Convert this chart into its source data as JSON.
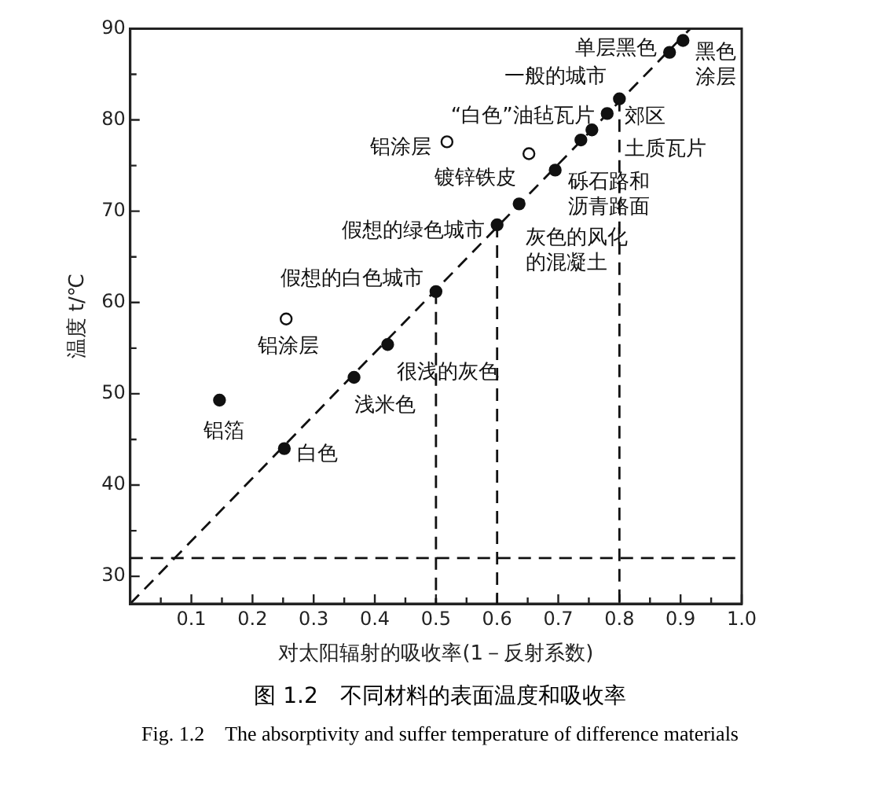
{
  "chart_data": {
    "type": "scatter",
    "xlabel": "对太阳辐射的吸收率(1－反射系数)",
    "ylabel": "温度 t/℃",
    "xlim": [
      0,
      1
    ],
    "ylim": [
      27,
      90
    ],
    "xticks": [
      {
        "value": 0.05,
        "label": null
      },
      0.1,
      {
        "value": 0.15,
        "label": null
      },
      0.2,
      {
        "value": 0.25,
        "label": null
      },
      0.3,
      {
        "value": 0.35,
        "label": null
      },
      0.4,
      {
        "value": 0.45,
        "label": null
      },
      0.5,
      {
        "value": 0.55,
        "label": null
      },
      0.6,
      {
        "value": 0.65,
        "label": null
      },
      0.7,
      {
        "value": 0.75,
        "label": null
      },
      0.8,
      {
        "value": 0.85,
        "label": null
      },
      0.9,
      {
        "value": 0.95,
        "label": null
      },
      {
        "value": 1,
        "label": "1.0"
      }
    ],
    "yticks": [
      30,
      {
        "value": 35,
        "label": null
      },
      40,
      {
        "value": 45,
        "label": null
      },
      50,
      {
        "value": 55,
        "label": null
      },
      60,
      {
        "value": 65,
        "label": null
      },
      70,
      {
        "value": 75,
        "label": null
      },
      80,
      {
        "value": 85,
        "label": null
      },
      90
    ],
    "grid": false,
    "marker": "circle",
    "line_style": "dashed",
    "series": [
      {
        "type": "scatter",
        "color": "#111111",
        "x": [
          0.252,
          0.146,
          0.366,
          0.421,
          0.5,
          0.6,
          0.636,
          0.695,
          0.737,
          0.755,
          0.78,
          0.8,
          0.882,
          0.904
        ],
        "values": [
          44.0,
          49.3,
          51.8,
          55.4,
          61.2,
          68.5,
          70.8,
          74.5,
          77.8,
          78.9,
          80.7,
          82.3,
          87.4,
          88.7
        ]
      },
      {
        "type": "scatter",
        "color": "#ffffff",
        "x": [
          0.255,
          0.652,
          0.518
        ],
        "values": [
          58.2,
          76.3,
          77.6
        ]
      },
      {
        "type": "line",
        "marker": "none",
        "color": "#111111",
        "x": [
          0,
          0.916
        ],
        "values": [
          27,
          90
        ]
      }
    ],
    "ref_lines": [
      {
        "axis": "y",
        "value": 32,
        "line_style": "dashed",
        "color": "#111111"
      },
      {
        "axis": "x",
        "value": 0.5,
        "line_style": "dashed",
        "color": "#111111"
      },
      {
        "axis": "x",
        "value": 0.6,
        "line_style": "dashed",
        "color": "#111111"
      },
      {
        "axis": "x",
        "value": 0.8,
        "line_style": "dashed",
        "color": "#111111"
      }
    ],
    "annotations": [
      {
        "text": "白色",
        "x": 0.252,
        "y": 44.0
      },
      {
        "text": "铝箔",
        "x": 0.146,
        "y": 49.3
      },
      {
        "text": "浅米色",
        "x": 0.366,
        "y": 51.8
      },
      {
        "text": "很浅的灰色",
        "x": 0.421,
        "y": 55.4
      },
      {
        "text": "铝涂层",
        "x": 0.255,
        "y": 58.2
      },
      {
        "text": "假想的白色城市",
        "x": 0.5,
        "y": 61.2
      },
      {
        "text": "假想的绿色城市",
        "x": 0.6,
        "y": 68.5
      },
      {
        "text": "灰色的风化的混凝土",
        "x": 0.636,
        "y": 70.8
      },
      {
        "text": "砾石路和沥青路面",
        "x": 0.695,
        "y": 74.5
      },
      {
        "text": "镀锌铁皮",
        "x": 0.652,
        "y": 76.3
      },
      {
        "text": "铝涂层",
        "x": 0.518,
        "y": 77.6
      },
      {
        "text": "土质瓦片",
        "x": 0.737,
        "y": 77.8
      },
      {
        "text": "郊区",
        "x": 0.755,
        "y": 78.9
      },
      {
        "text": "“白色”油毡瓦片",
        "x": 0.78,
        "y": 80.7
      },
      {
        "text": "一般的城市",
        "x": 0.8,
        "y": 82.3
      },
      {
        "text": "单层黑色",
        "x": 0.882,
        "y": 87.4
      },
      {
        "text": "黑色涂层",
        "x": 0.904,
        "y": 88.7
      },
      "图 1.2　不同材料的表面温度和吸收率",
      "Fig. 1.2　The absorptivity and suffer temperature of difference materials"
    ]
  }
}
